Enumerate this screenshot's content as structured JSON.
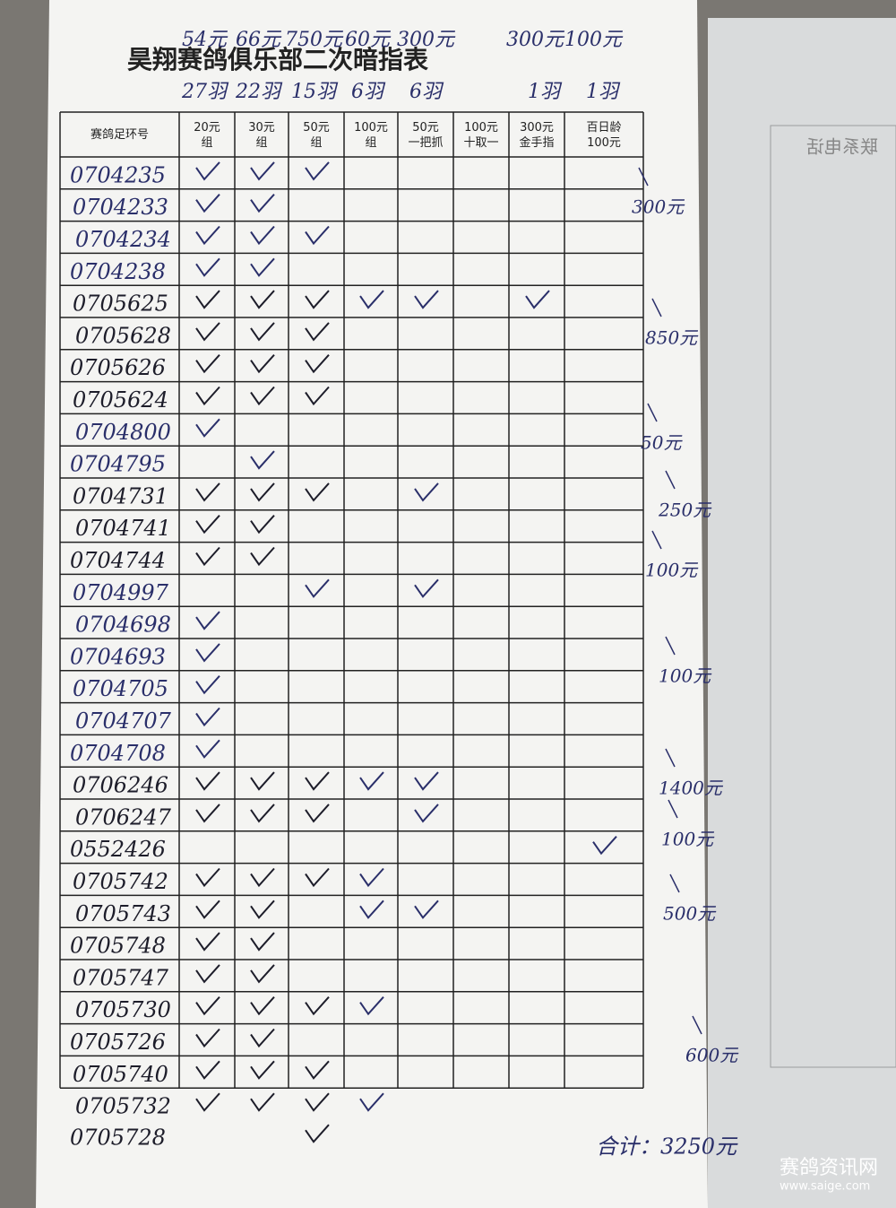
{
  "title": "昊翔赛鸽俱乐部二次暗指表",
  "amounts": [
    "54元",
    "66元",
    "750元",
    "60元",
    "300元",
    "300元",
    "100元"
  ],
  "counts": [
    "27羽",
    "22羽",
    "15羽",
    "6羽",
    "6羽",
    "1羽",
    "1羽"
  ],
  "headers": [
    "赛鸽足环号",
    "20元\n组",
    "30元\n组",
    "50元\n组",
    "100元\n组",
    "50元\n一把抓",
    "100元\n十取一",
    "300元\n金手指",
    "百日龄\n100元"
  ],
  "rows": [
    {
      "ring": "0704235",
      "checks": [
        0,
        1,
        2
      ]
    },
    {
      "ring": "0704233",
      "checks": [
        0,
        1
      ]
    },
    {
      "ring": "0704234",
      "checks": [
        0,
        1,
        2
      ]
    },
    {
      "ring": "0704238",
      "checks": [
        0,
        1
      ]
    },
    {
      "ring": "0705625",
      "checks": [
        0,
        1,
        2,
        3,
        4,
        6
      ]
    },
    {
      "ring": "0705628",
      "checks": [
        0,
        1,
        2
      ]
    },
    {
      "ring": "0705626",
      "checks": [
        0,
        1,
        2
      ]
    },
    {
      "ring": "0705624",
      "checks": [
        0,
        1,
        2
      ]
    },
    {
      "ring": "0704800",
      "checks": [
        0
      ]
    },
    {
      "ring": "0704795",
      "checks": [
        1
      ]
    },
    {
      "ring": "0704731",
      "checks": [
        0,
        1,
        2,
        4
      ]
    },
    {
      "ring": "0704741",
      "checks": [
        0,
        1
      ]
    },
    {
      "ring": "0704744",
      "checks": [
        0,
        1
      ]
    },
    {
      "ring": "0704997",
      "checks": [
        2,
        4
      ]
    },
    {
      "ring": "0704698",
      "checks": [
        0
      ]
    },
    {
      "ring": "0704693",
      "checks": [
        0
      ]
    },
    {
      "ring": "0704705",
      "checks": [
        0
      ]
    },
    {
      "ring": "0704707",
      "checks": [
        0
      ]
    },
    {
      "ring": "0704708",
      "checks": [
        0
      ]
    },
    {
      "ring": "0706246",
      "checks": [
        0,
        1,
        2,
        3,
        4
      ]
    },
    {
      "ring": "0706247",
      "checks": [
        0,
        1,
        2,
        4
      ]
    },
    {
      "ring": "0552426",
      "checks": [
        7
      ]
    },
    {
      "ring": "0705742",
      "checks": [
        0,
        1,
        2,
        3
      ]
    },
    {
      "ring": "0705743",
      "checks": [
        0,
        1,
        3,
        4
      ]
    },
    {
      "ring": "0705748",
      "checks": [
        0,
        1
      ]
    },
    {
      "ring": "0705747",
      "checks": [
        0,
        1
      ]
    },
    {
      "ring": "0705730",
      "checks": [
        0,
        1,
        2,
        3
      ]
    },
    {
      "ring": "0705726",
      "checks": [
        0,
        1
      ]
    },
    {
      "ring": "0705740",
      "checks": [
        0,
        1,
        2
      ]
    },
    {
      "ring": "0705732",
      "checks": [
        0,
        1,
        2,
        3
      ]
    },
    {
      "ring": "0705728",
      "checks": [
        2
      ]
    }
  ],
  "subtotals": [
    "300元",
    "850元",
    "50元",
    "250元",
    "100元",
    "100元",
    "1400元",
    "100元",
    "500元",
    "600元"
  ],
  "total": "合计：3250元",
  "background_label": "联系电话",
  "watermark": {
    "name": "赛鸽资讯网",
    "url": "www.saige.com"
  }
}
